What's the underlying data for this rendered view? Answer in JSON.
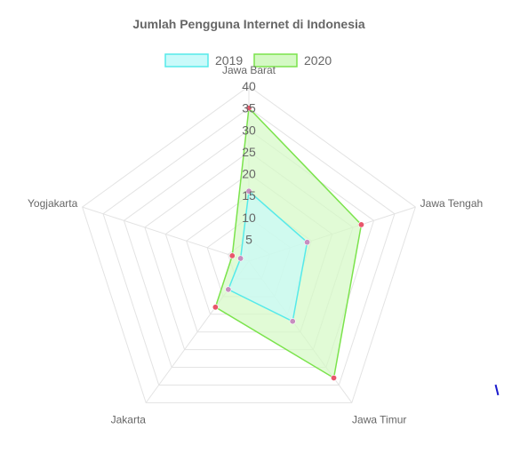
{
  "chart_data": {
    "type": "radar",
    "title": "Jumlah Pengguna Internet di Indonesia",
    "categories": [
      "Jawa Barat",
      "Jawa Tengah",
      "Jawa Timur",
      "Jakarta",
      "Yogjakarta"
    ],
    "series": [
      {
        "name": "2019",
        "values": [
          16,
          14,
          17,
          8,
          2
        ],
        "line_color": "#55eaea",
        "fill_color": "#c9fafa",
        "point_color": "#c78dbf"
      },
      {
        "name": "2020",
        "values": [
          35,
          27,
          33,
          13,
          4
        ],
        "line_color": "#7be34c",
        "fill_color": "#d4f9c4",
        "point_color": "#e8566b"
      }
    ],
    "r_ticks": [
      "5",
      "10",
      "15",
      "20",
      "25",
      "30",
      "35",
      "40"
    ],
    "r_range": [
      0,
      40
    ],
    "legend_position": "top",
    "grid": true,
    "grid_color": "#e3e3e3"
  }
}
